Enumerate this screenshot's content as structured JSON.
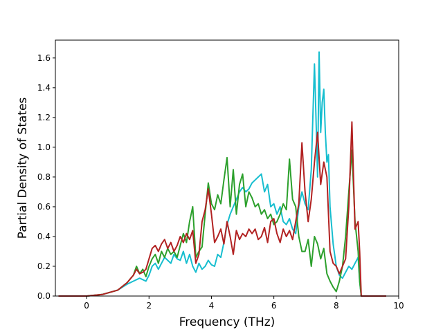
{
  "chart_data": {
    "type": "line",
    "title": "",
    "xlabel": "Frequency (THz)",
    "ylabel": "Partial Density of States",
    "xlim": [
      -1.0,
      10.0
    ],
    "ylim": [
      0.0,
      1.72
    ],
    "xticks": [
      0,
      2,
      4,
      6,
      8,
      10
    ],
    "xtick_labels": [
      "0",
      "2",
      "4",
      "6",
      "8",
      "10"
    ],
    "yticks": [
      0.0,
      0.2,
      0.4,
      0.6,
      0.8,
      1.0,
      1.2,
      1.4,
      1.6
    ],
    "ytick_labels": [
      "0.0",
      "0.2",
      "0.4",
      "0.6",
      "0.8",
      "1.0",
      "1.2",
      "1.4",
      "1.6"
    ],
    "grid": false,
    "legend": "none",
    "series": [
      {
        "color": "#17becf",
        "x": [
          -0.9,
          -0.5,
          0,
          0.5,
          1.0,
          1.3,
          1.5,
          1.7,
          1.8,
          1.9,
          2.0,
          2.1,
          2.2,
          2.3,
          2.4,
          2.5,
          2.6,
          2.7,
          2.8,
          2.9,
          3.0,
          3.1,
          3.2,
          3.3,
          3.4,
          3.5,
          3.6,
          3.7,
          3.8,
          3.9,
          4.0,
          4.1,
          4.2,
          4.3,
          4.4,
          4.5,
          4.6,
          4.7,
          4.8,
          4.9,
          5.0,
          5.1,
          5.2,
          5.3,
          5.4,
          5.5,
          5.6,
          5.7,
          5.8,
          5.9,
          6.0,
          6.1,
          6.2,
          6.3,
          6.4,
          6.5,
          6.6,
          6.7,
          6.8,
          6.9,
          7.0,
          7.1,
          7.2,
          7.3,
          7.35,
          7.4,
          7.45,
          7.5,
          7.55,
          7.6,
          7.65,
          7.7,
          7.75,
          7.8,
          7.9,
          8.0,
          8.1,
          8.2,
          8.3,
          8.4,
          8.5,
          8.6,
          8.7,
          8.75,
          8.8,
          9.0,
          9.6
        ],
        "y": [
          0.0,
          0.0,
          0.0,
          0.01,
          0.04,
          0.08,
          0.1,
          0.12,
          0.11,
          0.1,
          0.14,
          0.2,
          0.22,
          0.18,
          0.22,
          0.26,
          0.24,
          0.22,
          0.28,
          0.25,
          0.24,
          0.3,
          0.22,
          0.28,
          0.2,
          0.16,
          0.22,
          0.18,
          0.2,
          0.24,
          0.21,
          0.2,
          0.28,
          0.26,
          0.36,
          0.48,
          0.55,
          0.6,
          0.65,
          0.7,
          0.73,
          0.7,
          0.72,
          0.76,
          0.78,
          0.8,
          0.82,
          0.7,
          0.75,
          0.6,
          0.62,
          0.55,
          0.6,
          0.5,
          0.48,
          0.52,
          0.45,
          0.42,
          0.6,
          0.7,
          0.62,
          0.58,
          0.85,
          1.56,
          1.2,
          0.8,
          1.64,
          1.1,
          1.3,
          1.39,
          1.1,
          0.9,
          0.95,
          0.6,
          0.35,
          0.2,
          0.14,
          0.12,
          0.16,
          0.2,
          0.18,
          0.22,
          0.26,
          0.1,
          0.0,
          0.0,
          0.0
        ]
      },
      {
        "color": "#2ca02c",
        "x": [
          -0.9,
          -0.5,
          0,
          0.5,
          1.0,
          1.3,
          1.5,
          1.6,
          1.7,
          1.8,
          1.9,
          2.0,
          2.1,
          2.2,
          2.3,
          2.4,
          2.5,
          2.6,
          2.7,
          2.8,
          2.9,
          3.0,
          3.1,
          3.2,
          3.3,
          3.4,
          3.5,
          3.6,
          3.7,
          3.8,
          3.9,
          4.0,
          4.1,
          4.2,
          4.3,
          4.4,
          4.5,
          4.6,
          4.7,
          4.8,
          4.9,
          5.0,
          5.1,
          5.2,
          5.3,
          5.4,
          5.5,
          5.6,
          5.7,
          5.8,
          5.9,
          6.0,
          6.1,
          6.2,
          6.3,
          6.4,
          6.5,
          6.6,
          6.7,
          6.8,
          6.9,
          7.0,
          7.1,
          7.2,
          7.3,
          7.4,
          7.5,
          7.6,
          7.7,
          7.8,
          7.9,
          8.0,
          8.1,
          8.2,
          8.3,
          8.4,
          8.5,
          8.6,
          8.7,
          8.75,
          8.8,
          9.0,
          9.6
        ],
        "y": [
          0.0,
          0.0,
          0.0,
          0.01,
          0.04,
          0.09,
          0.14,
          0.2,
          0.15,
          0.18,
          0.13,
          0.2,
          0.25,
          0.28,
          0.22,
          0.3,
          0.26,
          0.32,
          0.28,
          0.3,
          0.26,
          0.34,
          0.42,
          0.36,
          0.5,
          0.6,
          0.26,
          0.3,
          0.33,
          0.55,
          0.76,
          0.62,
          0.58,
          0.68,
          0.62,
          0.78,
          0.93,
          0.6,
          0.85,
          0.55,
          0.75,
          0.82,
          0.6,
          0.7,
          0.66,
          0.6,
          0.62,
          0.55,
          0.58,
          0.52,
          0.55,
          0.48,
          0.5,
          0.55,
          0.62,
          0.58,
          0.92,
          0.65,
          0.6,
          0.4,
          0.3,
          0.3,
          0.38,
          0.2,
          0.4,
          0.35,
          0.25,
          0.32,
          0.15,
          0.1,
          0.06,
          0.03,
          0.1,
          0.2,
          0.4,
          0.7,
          0.98,
          0.5,
          0.3,
          0.1,
          0.0,
          0.0,
          0.0
        ]
      },
      {
        "color": "#b22222",
        "x": [
          -0.9,
          -0.5,
          0,
          0.5,
          1.0,
          1.3,
          1.5,
          1.6,
          1.7,
          1.8,
          1.9,
          2.0,
          2.1,
          2.2,
          2.3,
          2.4,
          2.5,
          2.6,
          2.7,
          2.8,
          2.9,
          3.0,
          3.1,
          3.2,
          3.3,
          3.4,
          3.5,
          3.6,
          3.7,
          3.8,
          3.9,
          4.0,
          4.1,
          4.2,
          4.3,
          4.4,
          4.5,
          4.6,
          4.7,
          4.8,
          4.9,
          5.0,
          5.1,
          5.2,
          5.3,
          5.4,
          5.5,
          5.6,
          5.7,
          5.8,
          5.9,
          6.0,
          6.1,
          6.2,
          6.3,
          6.4,
          6.5,
          6.6,
          6.7,
          6.8,
          6.9,
          7.0,
          7.1,
          7.2,
          7.3,
          7.4,
          7.5,
          7.6,
          7.7,
          7.8,
          7.9,
          8.0,
          8.1,
          8.2,
          8.3,
          8.4,
          8.5,
          8.6,
          8.7,
          8.75,
          8.8,
          9.0,
          9.6
        ],
        "y": [
          0.0,
          0.0,
          0.0,
          0.01,
          0.04,
          0.09,
          0.14,
          0.18,
          0.15,
          0.16,
          0.18,
          0.25,
          0.32,
          0.34,
          0.3,
          0.35,
          0.38,
          0.32,
          0.36,
          0.3,
          0.34,
          0.4,
          0.36,
          0.42,
          0.38,
          0.44,
          0.22,
          0.28,
          0.5,
          0.58,
          0.72,
          0.55,
          0.36,
          0.4,
          0.45,
          0.35,
          0.5,
          0.4,
          0.28,
          0.44,
          0.38,
          0.42,
          0.4,
          0.45,
          0.42,
          0.45,
          0.38,
          0.4,
          0.46,
          0.36,
          0.5,
          0.52,
          0.42,
          0.36,
          0.45,
          0.4,
          0.44,
          0.38,
          0.5,
          0.62,
          1.03,
          0.7,
          0.5,
          0.65,
          0.9,
          1.1,
          0.75,
          0.9,
          0.8,
          0.3,
          0.22,
          0.2,
          0.15,
          0.2,
          0.25,
          0.6,
          1.17,
          0.45,
          0.5,
          0.3,
          0.0,
          0.0,
          0.0
        ]
      }
    ]
  }
}
